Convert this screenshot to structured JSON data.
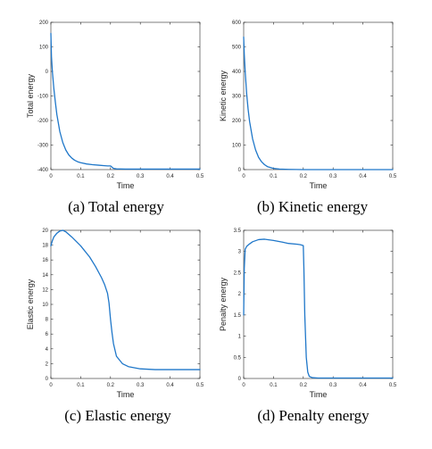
{
  "colors": {
    "line": "#1f77c9",
    "axis": "#262626",
    "background": "#ffffff"
  },
  "chart_data": [
    {
      "type": "line",
      "caption": "(a)  Total energy",
      "xlabel": "Time",
      "ylabel": "Total energy",
      "xlim": [
        0,
        0.5
      ],
      "ylim": [
        -400,
        200
      ],
      "xticks": [
        "0",
        "0.1",
        "0.2",
        "0.3",
        "0.4",
        "0.5"
      ],
      "yticks": [
        "-400",
        "-300",
        "-200",
        "-100",
        "0",
        "100",
        "200"
      ],
      "grid": false,
      "series": [
        {
          "x": [
            0,
            0.002,
            0.005,
            0.01,
            0.015,
            0.02,
            0.03,
            0.04,
            0.05,
            0.06,
            0.07,
            0.08,
            0.09,
            0.1,
            0.12,
            0.14,
            0.16,
            0.18,
            0.19,
            0.2,
            0.205,
            0.21,
            0.22,
            0.25,
            0.3,
            0.4,
            0.5
          ],
          "y": [
            155,
            60,
            0,
            -70,
            -125,
            -175,
            -245,
            -290,
            -320,
            -340,
            -353,
            -362,
            -368,
            -372,
            -377,
            -380,
            -382,
            -384,
            -385,
            -385,
            -390,
            -395,
            -397,
            -398,
            -398,
            -398,
            -398
          ]
        }
      ]
    },
    {
      "type": "line",
      "caption": "(b)  Kinetic energy",
      "xlabel": "Time",
      "ylabel": "Kinetic energy",
      "xlim": [
        0,
        0.5
      ],
      "ylim": [
        0,
        600
      ],
      "xticks": [
        "0",
        "0.1",
        "0.2",
        "0.3",
        "0.4",
        "0.5"
      ],
      "yticks": [
        "0",
        "100",
        "200",
        "300",
        "400",
        "500",
        "600"
      ],
      "grid": false,
      "series": [
        {
          "x": [
            0,
            0.002,
            0.005,
            0.01,
            0.015,
            0.02,
            0.03,
            0.04,
            0.05,
            0.06,
            0.07,
            0.08,
            0.1,
            0.12,
            0.15,
            0.2,
            0.3,
            0.4,
            0.5
          ],
          "y": [
            540,
            470,
            400,
            310,
            245,
            195,
            125,
            80,
            50,
            32,
            20,
            12,
            5,
            2,
            1,
            0,
            0,
            0,
            0
          ]
        }
      ]
    },
    {
      "type": "line",
      "caption": "(c)  Elastic energy",
      "xlabel": "Time",
      "ylabel": "Elastic energy",
      "xlim": [
        0,
        0.5
      ],
      "ylim": [
        0,
        20
      ],
      "xticks": [
        "0",
        "0.1",
        "0.2",
        "0.3",
        "0.4",
        "0.5"
      ],
      "yticks": [
        "0",
        "2",
        "4",
        "6",
        "8",
        "10",
        "12",
        "14",
        "16",
        "18",
        "20"
      ],
      "grid": false,
      "series": [
        {
          "x": [
            0,
            0.005,
            0.01,
            0.02,
            0.03,
            0.04,
            0.05,
            0.07,
            0.1,
            0.13,
            0.15,
            0.17,
            0.18,
            0.19,
            0.195,
            0.2,
            0.205,
            0.21,
            0.22,
            0.24,
            0.26,
            0.3,
            0.35,
            0.4,
            0.5
          ],
          "y": [
            17.9,
            18.6,
            19.1,
            19.6,
            19.9,
            20.0,
            19.8,
            19.1,
            17.9,
            16.4,
            15.1,
            13.6,
            12.7,
            11.5,
            10.2,
            8.0,
            6.2,
            4.7,
            3.0,
            2.0,
            1.6,
            1.3,
            1.2,
            1.2,
            1.2
          ]
        }
      ]
    },
    {
      "type": "line",
      "caption": "(d)  Penalty energy",
      "xlabel": "Time",
      "ylabel": "Penalty energy",
      "xlim": [
        0,
        0.5
      ],
      "ylim": [
        0,
        3.5
      ],
      "xticks": [
        "0",
        "0.1",
        "0.2",
        "0.3",
        "0.4",
        "0.5"
      ],
      "yticks": [
        "0",
        "0.5",
        "1",
        "1.5",
        "2",
        "2.5",
        "3",
        "3.5"
      ],
      "grid": false,
      "series": [
        {
          "x": [
            0,
            0.002,
            0.005,
            0.01,
            0.02,
            0.03,
            0.05,
            0.07,
            0.1,
            0.13,
            0.15,
            0.18,
            0.19,
            0.2,
            0.202,
            0.205,
            0.21,
            0.215,
            0.22,
            0.23,
            0.25,
            0.3,
            0.4,
            0.5
          ],
          "y": [
            1.5,
            2.6,
            3.05,
            3.12,
            3.18,
            3.23,
            3.28,
            3.29,
            3.26,
            3.22,
            3.19,
            3.17,
            3.16,
            3.14,
            2.6,
            1.5,
            0.5,
            0.15,
            0.05,
            0.02,
            0.01,
            0.01,
            0.01,
            0.01
          ]
        }
      ]
    }
  ]
}
